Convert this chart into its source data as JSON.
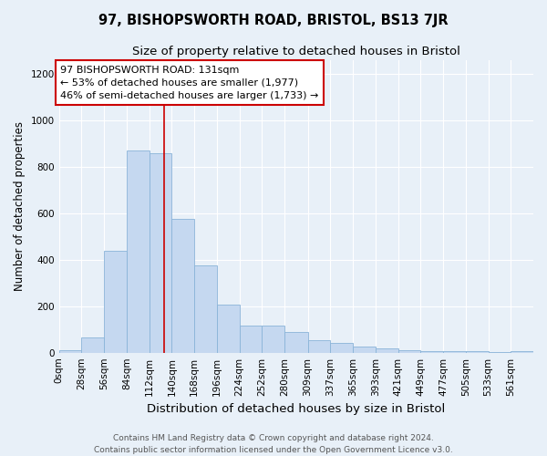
{
  "title_main": "97, BISHOPSWORTH ROAD, BRISTOL, BS13 7JR",
  "title_sub": "Size of property relative to detached houses in Bristol",
  "xlabel": "Distribution of detached houses by size in Bristol",
  "ylabel": "Number of detached properties",
  "bar_values": [
    10,
    65,
    440,
    870,
    860,
    575,
    375,
    205,
    115,
    115,
    90,
    55,
    40,
    25,
    18,
    12,
    8,
    5,
    5,
    3,
    5
  ],
  "bin_labels": [
    "0sqm",
    "28sqm",
    "56sqm",
    "84sqm",
    "112sqm",
    "140sqm",
    "168sqm",
    "196sqm",
    "224sqm",
    "252sqm",
    "280sqm",
    "309sqm",
    "337sqm",
    "365sqm",
    "393sqm",
    "421sqm",
    "449sqm",
    "477sqm",
    "505sqm",
    "533sqm",
    "561sqm"
  ],
  "bin_edges": [
    0,
    28,
    56,
    84,
    112,
    140,
    168,
    196,
    224,
    252,
    280,
    309,
    337,
    365,
    393,
    421,
    449,
    477,
    505,
    533,
    561,
    589
  ],
  "bar_color": "#c5d8f0",
  "bar_edge_color": "#8ab4d8",
  "vline_x": 131,
  "vline_color": "#cc0000",
  "annotation_line1": "97 BISHOPSWORTH ROAD: 131sqm",
  "annotation_line2": "← 53% of detached houses are smaller (1,977)",
  "annotation_line3": "46% of semi-detached houses are larger (1,733) →",
  "annotation_box_color": "white",
  "annotation_box_edge": "#cc0000",
  "ylim": [
    0,
    1260
  ],
  "yticks": [
    0,
    200,
    400,
    600,
    800,
    1000,
    1200
  ],
  "background_color": "#e8f0f8",
  "grid_color": "white",
  "footer_line1": "Contains HM Land Registry data © Crown copyright and database right 2024.",
  "footer_line2": "Contains public sector information licensed under the Open Government Licence v3.0.",
  "title_main_fontsize": 10.5,
  "title_sub_fontsize": 9.5,
  "xlabel_fontsize": 9.5,
  "ylabel_fontsize": 8.5,
  "annotation_fontsize": 8,
  "tick_fontsize": 7.5,
  "footer_fontsize": 6.5
}
